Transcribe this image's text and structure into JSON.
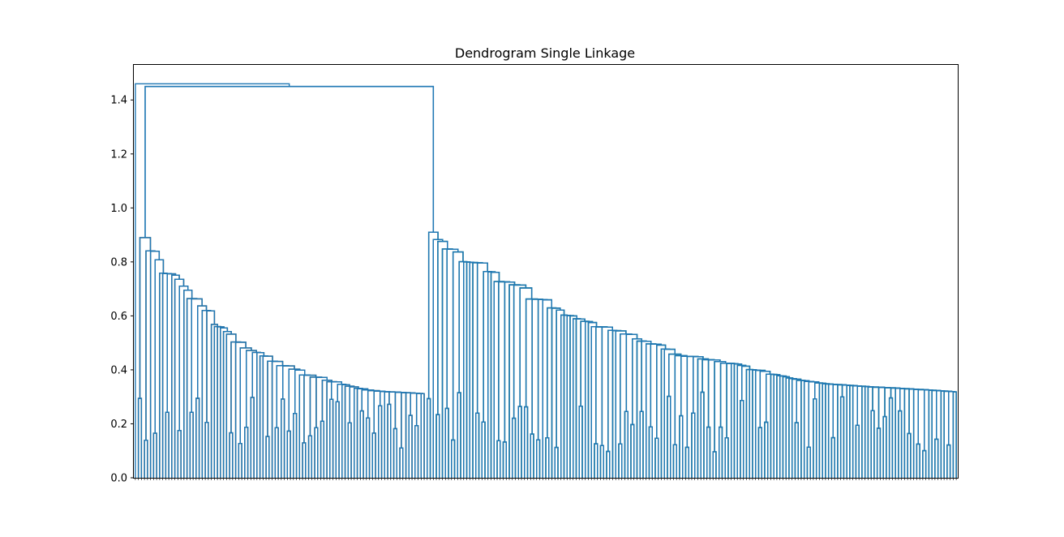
{
  "chart_data": {
    "type": "dendrogram",
    "title": "Dendrogram Single Linkage",
    "xlabel": "",
    "ylabel": "",
    "ylim": [
      0,
      1.53
    ],
    "y_ticks": [
      "0.0",
      "0.2",
      "0.4",
      "0.6",
      "0.8",
      "1.0",
      "1.2",
      "1.4"
    ],
    "grid": false,
    "colors": {
      "top": "#1f77b4",
      "cluster_orange": "#ff7f0e",
      "cluster_green": "#2ca02c"
    },
    "clusters": [
      {
        "color": "cluster_orange",
        "leaf_count": 95,
        "merge_height": 0.89
      },
      {
        "color": "cluster_green",
        "leaf_count": 175,
        "merge_height": 0.91
      }
    ],
    "top_merges": [
      {
        "height": 1.45,
        "joins": "orange cluster + green cluster"
      },
      {
        "height": 1.46,
        "joins": "leftmost leaf + rest"
      }
    ]
  }
}
